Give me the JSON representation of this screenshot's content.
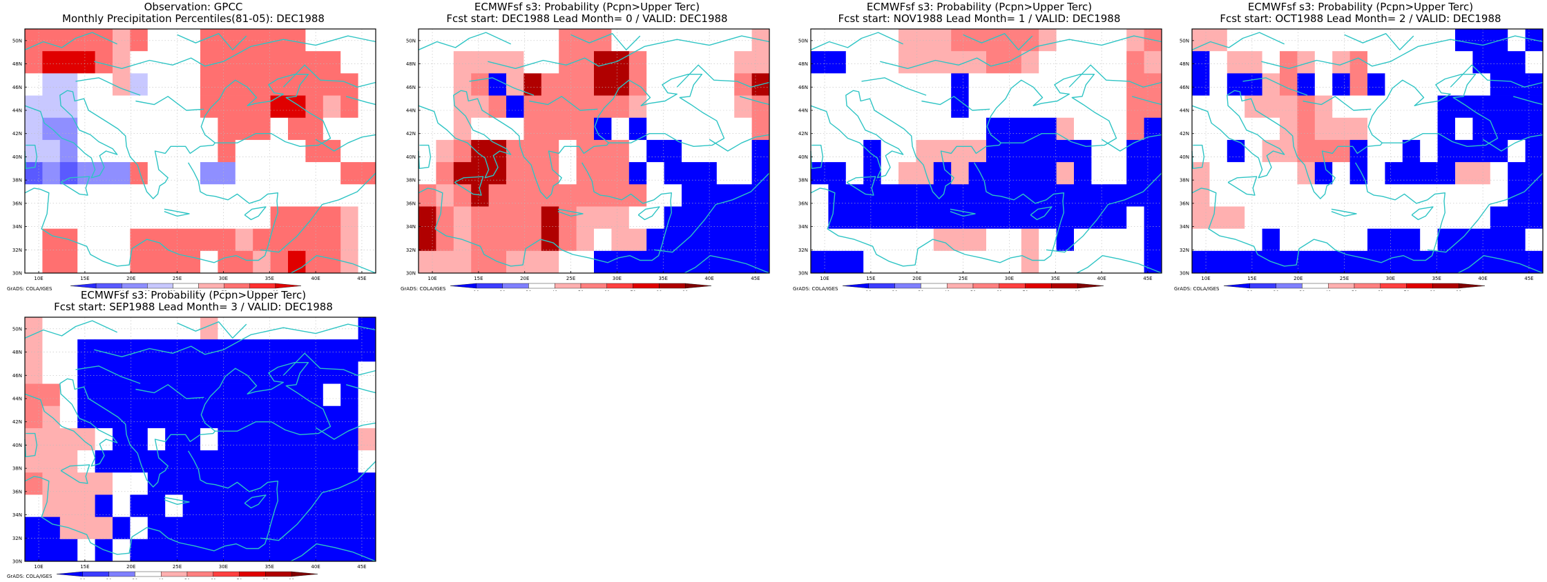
{
  "colors": {
    "coast": "#2ec4c4",
    "grid": "#bbbbbb",
    "frame": "#000000"
  },
  "map": {
    "lat_labels": [
      "30N",
      "32N",
      "34N",
      "36N",
      "38N",
      "40N",
      "42N",
      "44N",
      "46N",
      "48N",
      "50N"
    ],
    "lon_labels": [
      "10E",
      "15E",
      "20E",
      "25E",
      "30E",
      "35E",
      "40E",
      "45E"
    ]
  },
  "grads_credit": "GrADS: COLA/IGES",
  "panels": [
    {
      "id": "obs",
      "title_line1": "Observation: GPCC",
      "title_line2": "Monthly Precipitation Percentiles(81-05): DEC1988",
      "legend": {
        "labels": [
          "2",
          "10",
          "25",
          "33",
          "66",
          "75",
          "90",
          "98"
        ],
        "colors": [
          "#2a2aff",
          "#5a5aff",
          "#8f8fff",
          "#c8c8ff",
          "#ffffff",
          "#ffb0b0",
          "#ff7070",
          "#ff3030",
          "#e00000"
        ]
      },
      "grid_cells": [
        "rrrrrprwwwrrrrrrwwww",
        "rRRRrpwwwwrrrrrrrrww",
        "wbbwwpbwwwrrrrrrrrrw",
        "bbbwwwwwwwrrrrRRrprw",
        "bBBwwwwwwwwrrrwrrwww",
        "bbBwwwwwwwwrwwwwrrww",
        "CBCBBBrwwwBBwwwwwwrr",
        "wwwwwwwwwwwwwwwwwwww",
        "wwwwwwwwwwwwwwrrrrpw",
        "wrrwwwrrrrrrprrrrrpw",
        "wrrwwwrrrrwrrprRrrpw"
      ]
    },
    {
      "id": "lead0",
      "title_line1": "ECMWFsf s3: Probability (Pcpn>Upper Terc)",
      "title_line2": "Fcst start: DEC1988   Lead Month= 0 / VALID: DEC1988",
      "legend": {
        "labels": [
          "10",
          "20",
          "30",
          "40",
          "50",
          "60",
          "70",
          "80",
          "90"
        ],
        "colors": [
          "#0000ff",
          "#3c3cff",
          "#8080ff",
          "#ffffff",
          "#ffb0b0",
          "#ff8080",
          "#ff4040",
          "#e00000",
          "#b00000",
          "#800000"
        ]
      },
      "grid_cells": [
        "wwwwwwwwrrrwwwwwwwwp",
        "wwppppwwrrRRrwwwwwpp",
        "wwprbpRrrrRRrwwwwwrR",
        "wwpprbrrrrrrpwwwwwpr",
        "wwpwwwrrrrbwbwwwwwwr",
        "wprRRrrrwrrrwbbwwwwb",
        "wrRRRrrrwrrrbwbbbwwb",
        "rprRrrrrrrrrrwwbbbbb",
        "RrprrrrRrpppwwbbbbbb",
        "RrprrrrRrpwppbbbbbbb",
        "ppprrpppwwbbbbbbbbbb"
      ]
    },
    {
      "id": "lead1",
      "title_line1": "ECMWFsf s3: Probability (Pcpn>Upper Terc)",
      "title_line2": "Fcst start: NOV1988   Lead Month= 1 / VALID: DEC1988",
      "legend": {
        "labels": [
          "10",
          "20",
          "30",
          "40",
          "50",
          "60",
          "70",
          "80",
          "90"
        ],
        "colors": [
          "#0000ff",
          "#3c3cff",
          "#8080ff",
          "#ffffff",
          "#ffb0b0",
          "#ff8080",
          "#ff4040",
          "#e00000",
          "#b00000",
          "#800000"
        ]
      },
      "grid_cells": [
        "wwwwwppprrrrrpwwwwpr",
        "bbwwwppppprrpwwwwwrp",
        "wwwwwwwwbwwwwwwwwwrr",
        "wwwwwwwwbwwwwwwwwwrr",
        "wwwwwwwwwwbbbbpwwwrb",
        "wwwbwwppppbbbbbbwwbb",
        "bbwbwppbpbbbbbpbwwbb",
        "wbbbbbbbbbbbbbbbbbbb",
        "wbbbbbbbbbbbbbbbbbwb",
        "wwwwwwwpppwwpwbwwwwb",
        "bbbwwwwwwwwwpwwwwwwb"
      ]
    },
    {
      "id": "lead2",
      "title_line1": "ECMWFsf s3: Probability (Pcpn>Upper Terc)",
      "title_line2": "Fcst start: OCT1988   Lead Month= 2 / VALID: DEC1988",
      "legend": {
        "labels": [
          "10",
          "20",
          "30",
          "40",
          "50",
          "60",
          "70",
          "80",
          "90"
        ],
        "colors": [
          "#0000ff",
          "#3c3cff",
          "#8080ff",
          "#ffffff",
          "#ffb0b0",
          "#ff8080",
          "#ff4040",
          "#e00000",
          "#b00000",
          "#800000"
        ]
      },
      "grid_cells": [
        "ppwwwwwwwwwwwwwbbbwb",
        "bwppwrpwprwwwwwwbbbw",
        "bwbbprbwbrbwwwwwwbbb",
        "wwwppprpwwwwwwbbbbbb",
        "wwwwwprpppwwwwbwbbbb",
        "wwbwpprrrbwwbwbbbbwb",
        "pwwwwwpbwbwbbbbppwbb",
        "pwwwwwwwwwwwwwwwwwbb",
        "pppwwwwwwwwwwwwwwbbb",
        "wwwwbwwwwwbbbwbbbbbw",
        "bbbbbbbbbbbbbbbbbbbb"
      ]
    },
    {
      "id": "lead3",
      "title_line1": "ECMWFsf s3: Probability (Pcpn>Upper Terc)",
      "title_line2": "Fcst start: SEP1988   Lead Month= 3 / VALID: DEC1988",
      "legend": {
        "labels": [
          "10",
          "20",
          "30",
          "40",
          "50",
          "60",
          "70",
          "80",
          "90"
        ],
        "colors": [
          "#0000ff",
          "#3c3cff",
          "#8080ff",
          "#ffffff",
          "#ffb0b0",
          "#ff8080",
          "#ff4040",
          "#e00000",
          "#b00000",
          "#800000"
        ]
      },
      "grid_cells": [
        "pwwwwwwwwwpwwwwwwwwb",
        "pwwbbbbbbbbbbbbbbbbb",
        "pwwbbbbbbbbbbbbbbbbw",
        "rrwbbbbbbbbbbbbbbwbw",
        "rpwbbbbbbbbbbbbbbbbw",
        "ppppwbbwbbwbbbbbbbbp",
        "pppwbbbbbbbbbbbbbbbw",
        "rppppwwbbbbbbbbbbbbb",
        "wpppbwbbwbbbbbbbbbbb",
        "bbpppbwbbbbbbbbbbbbb",
        "bbbwbwbbbbbbbbbbbbbb"
      ]
    }
  ]
}
